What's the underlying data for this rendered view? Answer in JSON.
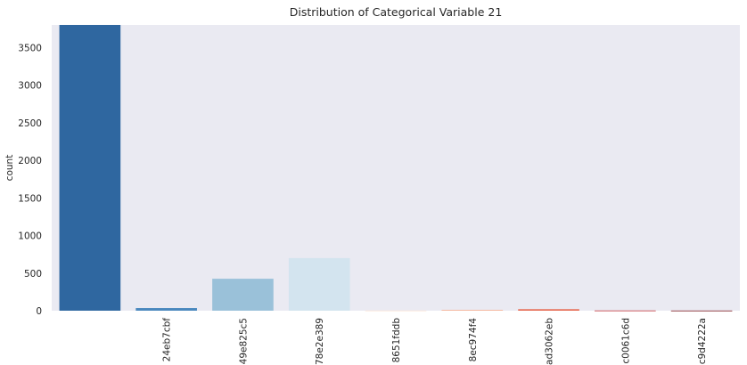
{
  "chart_data": {
    "type": "bar",
    "title": "Distribution of Categorical Variable 21",
    "xlabel": "",
    "ylabel": "count",
    "categories": [
      "",
      "24eb7cbf",
      "49e825c5",
      "78e2e389",
      "8651fddb",
      "8ec974f4",
      "ad3062eb",
      "c0061c6d",
      "c9d4222a"
    ],
    "values": [
      3800,
      35,
      425,
      700,
      3,
      10,
      20,
      3,
      2
    ],
    "colors": [
      "#2f67a0",
      "#4a88be",
      "#9ac1d9",
      "#d3e4ef",
      "#fbe3d6",
      "#f5ae92",
      "#e66b54",
      "#c2363a",
      "#7c1a21"
    ],
    "ylim": [
      0,
      3800
    ],
    "yticks": [
      0,
      500,
      1000,
      1500,
      2000,
      2500,
      3000,
      3500
    ],
    "grid": false,
    "background": "#eaeaf2"
  }
}
